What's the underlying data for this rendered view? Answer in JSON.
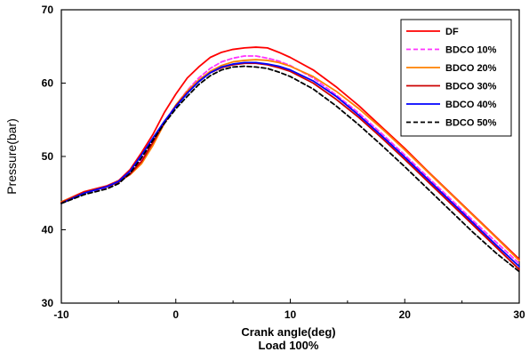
{
  "chart_data": {
    "type": "line",
    "title": "",
    "xlabel": "Crank angle(deg)",
    "xlabel_sub": "Load 100%",
    "ylabel": "Pressure(bar)",
    "xlim": [
      -10,
      30
    ],
    "ylim": [
      30,
      70
    ],
    "xticks": [
      -10,
      0,
      10,
      20,
      30
    ],
    "yticks": [
      30,
      40,
      50,
      60,
      70
    ],
    "grid": false,
    "legend_position": "top-right",
    "series": [
      {
        "name": "DF",
        "color": "#ff0000",
        "dash": "solid",
        "points": [
          [
            -10,
            43.8
          ],
          [
            -8,
            45.2
          ],
          [
            -6,
            46.0
          ],
          [
            -5,
            46.7
          ],
          [
            -4,
            48.2
          ],
          [
            -3,
            50.5
          ],
          [
            -2,
            53.0
          ],
          [
            -1,
            56.0
          ],
          [
            0,
            58.5
          ],
          [
            1,
            60.7
          ],
          [
            2,
            62.2
          ],
          [
            3,
            63.5
          ],
          [
            4,
            64.2
          ],
          [
            5,
            64.6
          ],
          [
            6,
            64.8
          ],
          [
            7,
            64.9
          ],
          [
            8,
            64.8
          ],
          [
            9,
            64.2
          ],
          [
            10,
            63.5
          ],
          [
            12,
            61.8
          ],
          [
            14,
            59.5
          ],
          [
            16,
            56.9
          ],
          [
            18,
            54.0
          ],
          [
            20,
            51.1
          ],
          [
            22,
            48.0
          ],
          [
            24,
            45.0
          ],
          [
            26,
            42.0
          ],
          [
            28,
            39.0
          ],
          [
            30,
            36.0
          ]
        ]
      },
      {
        "name": "BDCO 10%",
        "color": "#ff33ff",
        "dash": "dashed",
        "points": [
          [
            -10,
            43.7
          ],
          [
            -8,
            45.0
          ],
          [
            -6,
            45.8
          ],
          [
            -5,
            46.5
          ],
          [
            -4,
            47.7
          ],
          [
            -3,
            49.5
          ],
          [
            -2,
            52.0
          ],
          [
            -1,
            54.7
          ],
          [
            0,
            57.0
          ],
          [
            1,
            59.0
          ],
          [
            2,
            60.7
          ],
          [
            3,
            62.0
          ],
          [
            4,
            62.9
          ],
          [
            5,
            63.4
          ],
          [
            6,
            63.7
          ],
          [
            7,
            63.7
          ],
          [
            8,
            63.4
          ],
          [
            9,
            63.0
          ],
          [
            10,
            62.4
          ],
          [
            12,
            60.7
          ],
          [
            14,
            58.4
          ],
          [
            16,
            55.9
          ],
          [
            18,
            53.1
          ],
          [
            20,
            50.2
          ],
          [
            22,
            47.2
          ],
          [
            24,
            44.2
          ],
          [
            26,
            41.2
          ],
          [
            28,
            38.3
          ],
          [
            30,
            35.4
          ]
        ]
      },
      {
        "name": "BDCO 20%",
        "color": "#ff8000",
        "dash": "solid",
        "points": [
          [
            -10,
            43.8
          ],
          [
            -8,
            45.1
          ],
          [
            -6,
            45.9
          ],
          [
            -5,
            46.6
          ],
          [
            -4,
            47.5
          ],
          [
            -3,
            49.0
          ],
          [
            -2,
            51.5
          ],
          [
            -1,
            54.5
          ],
          [
            0,
            57.0
          ],
          [
            1,
            58.9
          ],
          [
            2,
            60.4
          ],
          [
            3,
            61.6
          ],
          [
            4,
            62.4
          ],
          [
            5,
            62.9
          ],
          [
            6,
            63.1
          ],
          [
            7,
            63.2
          ],
          [
            8,
            63.1
          ],
          [
            9,
            62.8
          ],
          [
            10,
            62.3
          ],
          [
            12,
            60.9
          ],
          [
            14,
            58.9
          ],
          [
            16,
            56.5
          ],
          [
            18,
            53.8
          ],
          [
            20,
            50.9
          ],
          [
            22,
            47.9
          ],
          [
            24,
            44.9
          ],
          [
            26,
            41.9
          ],
          [
            28,
            38.9
          ],
          [
            30,
            35.8
          ]
        ]
      },
      {
        "name": "BDCO 30%",
        "color": "#cc0000",
        "dash": "solid",
        "points": [
          [
            -10,
            43.7
          ],
          [
            -8,
            45.1
          ],
          [
            -6,
            45.9
          ],
          [
            -5,
            46.5
          ],
          [
            -4,
            47.6
          ],
          [
            -3,
            49.3
          ],
          [
            -2,
            51.9
          ],
          [
            -1,
            54.6
          ],
          [
            0,
            56.9
          ],
          [
            1,
            58.7
          ],
          [
            2,
            60.2
          ],
          [
            3,
            61.4
          ],
          [
            4,
            62.1
          ],
          [
            5,
            62.5
          ],
          [
            6,
            62.7
          ],
          [
            7,
            62.7
          ],
          [
            8,
            62.5
          ],
          [
            9,
            62.1
          ],
          [
            10,
            61.6
          ],
          [
            12,
            60.0
          ],
          [
            14,
            57.8
          ],
          [
            16,
            55.3
          ],
          [
            18,
            52.5
          ],
          [
            20,
            49.6
          ],
          [
            22,
            46.6
          ],
          [
            24,
            43.6
          ],
          [
            26,
            40.6
          ],
          [
            28,
            37.6
          ],
          [
            30,
            34.6
          ]
        ]
      },
      {
        "name": "BDCO 40%",
        "color": "#0000ff",
        "dash": "solid",
        "points": [
          [
            -10,
            43.6
          ],
          [
            -8,
            45.0
          ],
          [
            -6,
            45.9
          ],
          [
            -5,
            46.6
          ],
          [
            -4,
            48.0
          ],
          [
            -3,
            50.2
          ],
          [
            -2,
            52.5
          ],
          [
            -1,
            54.8
          ],
          [
            0,
            56.8
          ],
          [
            1,
            58.6
          ],
          [
            2,
            60.2
          ],
          [
            3,
            61.4
          ],
          [
            4,
            62.2
          ],
          [
            5,
            62.6
          ],
          [
            6,
            62.8
          ],
          [
            7,
            62.8
          ],
          [
            8,
            62.6
          ],
          [
            9,
            62.3
          ],
          [
            10,
            61.8
          ],
          [
            12,
            60.3
          ],
          [
            14,
            58.2
          ],
          [
            16,
            55.6
          ],
          [
            18,
            52.8
          ],
          [
            20,
            49.9
          ],
          [
            22,
            46.9
          ],
          [
            24,
            43.9
          ],
          [
            26,
            40.9
          ],
          [
            28,
            37.9
          ],
          [
            30,
            35.0
          ]
        ]
      },
      {
        "name": "BDCO 50%",
        "color": "#000000",
        "dash": "dashed",
        "points": [
          [
            -10,
            43.6
          ],
          [
            -8,
            44.8
          ],
          [
            -6,
            45.6
          ],
          [
            -5,
            46.3
          ],
          [
            -4,
            47.7
          ],
          [
            -3,
            49.8
          ],
          [
            -2,
            52.2
          ],
          [
            -1,
            54.5
          ],
          [
            0,
            56.5
          ],
          [
            1,
            58.2
          ],
          [
            2,
            59.8
          ],
          [
            3,
            61.0
          ],
          [
            4,
            61.8
          ],
          [
            5,
            62.2
          ],
          [
            6,
            62.3
          ],
          [
            7,
            62.2
          ],
          [
            8,
            62.0
          ],
          [
            9,
            61.5
          ],
          [
            10,
            60.9
          ],
          [
            12,
            59.2
          ],
          [
            14,
            56.9
          ],
          [
            16,
            54.3
          ],
          [
            18,
            51.5
          ],
          [
            20,
            48.6
          ],
          [
            22,
            45.6
          ],
          [
            24,
            42.6
          ],
          [
            26,
            39.6
          ],
          [
            28,
            36.8
          ],
          [
            30,
            34.3
          ]
        ]
      }
    ]
  }
}
